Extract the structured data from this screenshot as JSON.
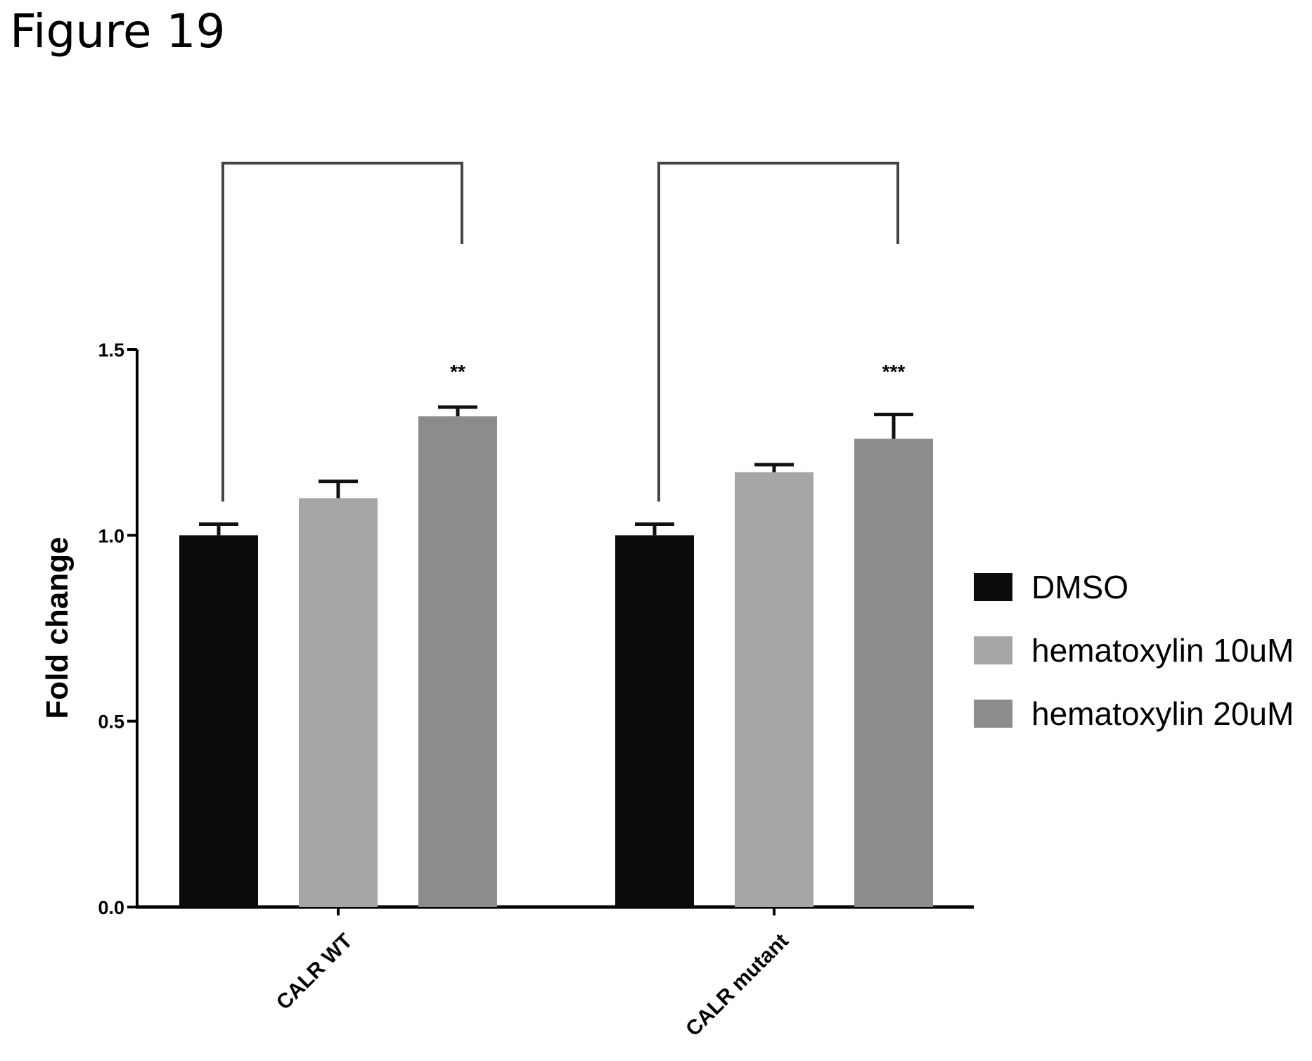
{
  "figure_title": "Figure 19",
  "colors": {
    "axis": "#000000",
    "bracket": "#444444",
    "error_bar": "#111111"
  },
  "chart_data": {
    "type": "bar",
    "title": "",
    "xlabel": "",
    "ylabel": "Fold change",
    "ylim": [
      0,
      1.5
    ],
    "yticks": [
      "0.0",
      "0.5",
      "1.0",
      "1.5"
    ],
    "categories": [
      "CALR WT",
      "CALR mutant"
    ],
    "series": [
      {
        "name": "DMSO",
        "color": "#0b0b0b",
        "values": [
          1.0,
          1.0
        ],
        "errors": [
          0.03,
          0.03
        ]
      },
      {
        "name": "hematoxylin 10uM",
        "color": "#a6a6a6",
        "values": [
          1.1,
          1.17
        ],
        "errors": [
          0.045,
          0.02
        ]
      },
      {
        "name": "hematoxylin 20uM",
        "color": "#8c8c8c",
        "values": [
          1.32,
          1.26
        ],
        "errors": [
          0.025,
          0.065
        ]
      }
    ],
    "significance": [
      "**",
      "***"
    ],
    "legend_position": "right"
  }
}
